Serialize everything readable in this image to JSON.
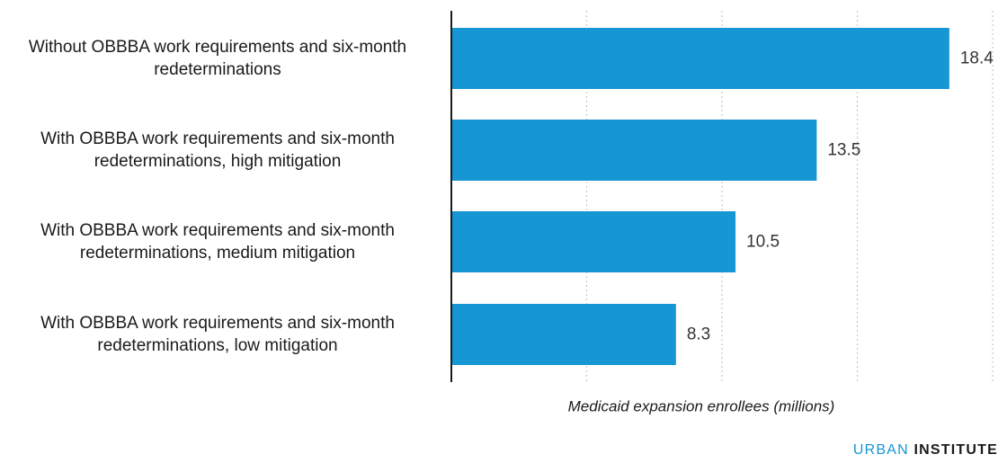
{
  "chart_data": {
    "type": "bar",
    "orientation": "horizontal",
    "categories": [
      [
        "Without OBBBA work requirements and six-month",
        "redeterminations"
      ],
      [
        "With OBBBA work requirements and six-month",
        "redeterminations, high mitigation"
      ],
      [
        "With OBBBA work requirements and six-month",
        "redeterminations, medium mitigation"
      ],
      [
        "With OBBBA work requirements and six-month",
        "redeterminations, low mitigation"
      ]
    ],
    "values": [
      18.4,
      13.5,
      10.5,
      8.3
    ],
    "value_labels": [
      "18.4",
      "13.5",
      "10.5",
      "8.3"
    ],
    "xlabel": "Medicaid expansion enrollees (millions)",
    "xlim": [
      0,
      20
    ],
    "grid": true,
    "grid_values": [
      5,
      10,
      15,
      20
    ],
    "bar_color": "#1696d2"
  },
  "branding": {
    "name_part1": "URBAN",
    "name_part2": "INSTITUTE",
    "color_part1": "#1696d2",
    "color_part2": "#1a1a1a"
  }
}
